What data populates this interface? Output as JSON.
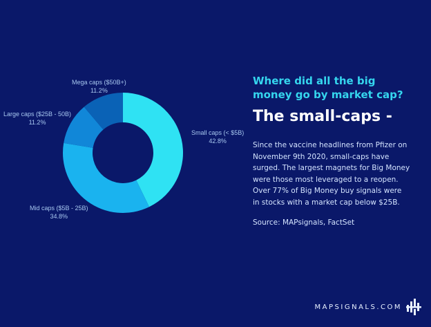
{
  "chart_data": {
    "type": "pie",
    "hole": true,
    "slices": [
      {
        "name": "Small caps (< $5B)",
        "value": 42.8,
        "label": "42.8%",
        "color": "#2fe2f3"
      },
      {
        "name": "Mid caps ($5B - 25B)",
        "value": 34.8,
        "label": "34.8%",
        "color": "#1ab3ef"
      },
      {
        "name": "Large caps ($25B - 50B)",
        "value": 11.2,
        "label": "11.2%",
        "color": "#1187d8"
      },
      {
        "name": "Mega caps ($50B+)",
        "value": 11.2,
        "label": "11.2%",
        "color": "#0a62b6"
      }
    ]
  },
  "text": {
    "question": "Where did all the big money go by market cap?",
    "headline": "The small-caps -",
    "body": "Since the vaccine headlines from Pfizer on November 9th 2020, small-caps have surged. The largest magnets for Big Money were those most leveraged to a reopen. Over 77% of Big Money buy signals were in stocks with a market cap below $25B.",
    "source": "Source: MAPsignals, FactSet"
  },
  "brand": {
    "name": "MAPSIGNALS.COM",
    "logo_icon": "mapsignals-logo-icon"
  },
  "colors": {
    "background": "#0a1869",
    "accent": "#35d6ee",
    "label": "#a8c8f0"
  }
}
